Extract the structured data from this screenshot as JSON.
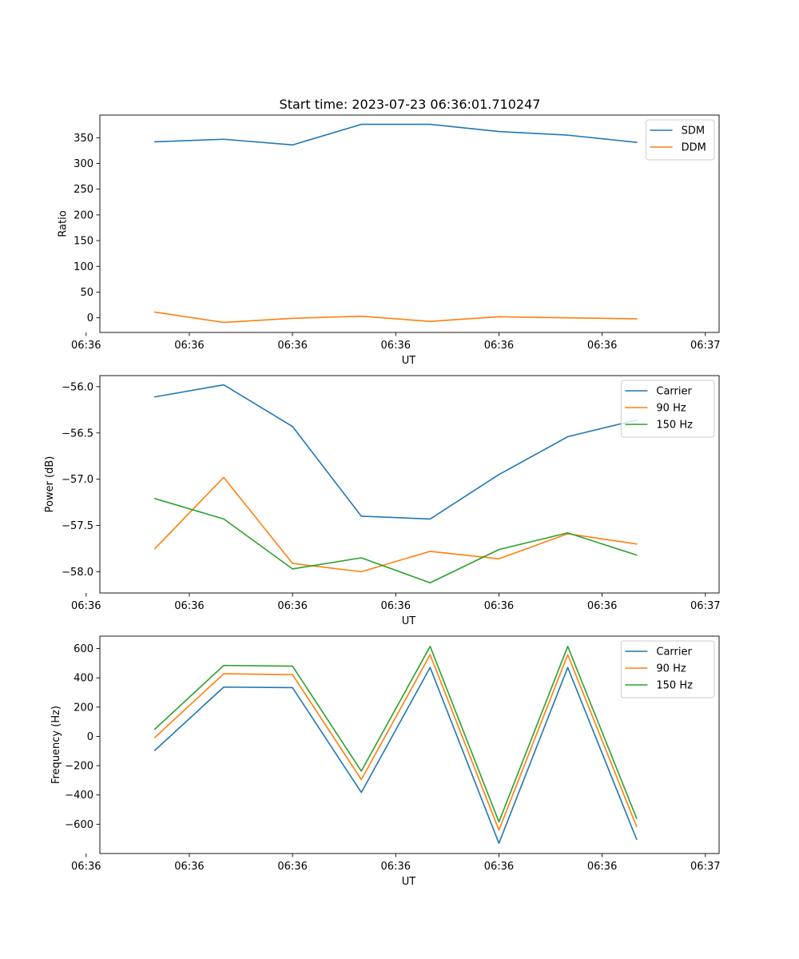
{
  "figure": {
    "title": "Start time: 2023-07-23 06:36:01.710247"
  },
  "colors": {
    "blue": "#1f77b4",
    "orange": "#ff7f0e",
    "green": "#2ca02c"
  },
  "chart_data": [
    {
      "type": "line",
      "title": "Start time: 2023-07-23 06:36:01.710247",
      "xlabel": "UT",
      "ylabel": "Ratio",
      "x": [
        1,
        2,
        3,
        4,
        5,
        6,
        7,
        8
      ],
      "xlim": [
        0.2,
        9.2
      ],
      "x_ticks": [
        0,
        1.5,
        3,
        4.5,
        6,
        7.5,
        9
      ],
      "x_tick_labels": [
        "06:36",
        "06:36",
        "06:36",
        "06:36",
        "06:36",
        "06:36",
        "06:37"
      ],
      "ylim": [
        -28.5,
        394
      ],
      "y_ticks": [
        0,
        50,
        100,
        150,
        200,
        250,
        300,
        350
      ],
      "y_tick_labels": [
        "0",
        "50",
        "100",
        "150",
        "200",
        "250",
        "300",
        "350"
      ],
      "legend_position": "top-right",
      "series": [
        {
          "name": "SDM",
          "color": "blue",
          "values": [
            342,
            347,
            336,
            376,
            376,
            362,
            355,
            341
          ]
        },
        {
          "name": "DDM",
          "color": "orange",
          "values": [
            11,
            -9,
            -1,
            3,
            -7,
            2,
            0,
            -2
          ]
        }
      ]
    },
    {
      "type": "line",
      "xlabel": "UT",
      "ylabel": "Power (dB)",
      "x": [
        1,
        2,
        3,
        4,
        5,
        6,
        7,
        8
      ],
      "xlim": [
        0.2,
        9.2
      ],
      "x_ticks": [
        0,
        1.5,
        3,
        4.5,
        6,
        7.5,
        9
      ],
      "x_tick_labels": [
        "06:36",
        "06:36",
        "06:36",
        "06:36",
        "06:36",
        "06:36",
        "06:37"
      ],
      "ylim": [
        -58.23,
        -55.88
      ],
      "y_ticks": [
        -58.0,
        -57.5,
        -57.0,
        -56.5,
        -56.0
      ],
      "y_tick_labels": [
        "−58.0",
        "−57.5",
        "−57.0",
        "−56.5",
        "−56.0"
      ],
      "legend_position": "top-right",
      "series": [
        {
          "name": "Carrier",
          "color": "blue",
          "values": [
            -56.11,
            -55.98,
            -56.43,
            -57.4,
            -57.43,
            -56.95,
            -56.54,
            -56.36
          ]
        },
        {
          "name": "90 Hz",
          "color": "orange",
          "values": [
            -57.75,
            -56.98,
            -57.91,
            -58.0,
            -57.78,
            -57.86,
            -57.59,
            -57.7
          ]
        },
        {
          "name": "150 Hz",
          "color": "green",
          "values": [
            -57.21,
            -57.43,
            -57.97,
            -57.85,
            -58.12,
            -57.76,
            -57.58,
            -57.82
          ]
        }
      ]
    },
    {
      "type": "line",
      "xlabel": "UT",
      "ylabel": "Frequency (Hz)",
      "x": [
        1,
        2,
        3,
        4,
        5,
        6,
        7,
        8
      ],
      "xlim": [
        0.2,
        9.2
      ],
      "x_ticks": [
        0,
        1.5,
        3,
        4.5,
        6,
        7.5,
        9
      ],
      "x_tick_labels": [
        "06:36",
        "06:36",
        "06:36",
        "06:36",
        "06:36",
        "06:36",
        "06:37"
      ],
      "ylim": [
        -800,
        685
      ],
      "y_ticks": [
        -600,
        -400,
        -200,
        0,
        200,
        400,
        600
      ],
      "y_tick_labels": [
        "−600",
        "−400",
        "−200",
        "0",
        "200",
        "400",
        "600"
      ],
      "legend_position": "top-right",
      "series": [
        {
          "name": "Carrier",
          "color": "blue",
          "values": [
            -95,
            337,
            333,
            -383,
            471,
            -730,
            471,
            -702
          ]
        },
        {
          "name": "90 Hz",
          "color": "orange",
          "values": [
            -7,
            428,
            422,
            -295,
            558,
            -640,
            558,
            -615
          ]
        },
        {
          "name": "150 Hz",
          "color": "green",
          "values": [
            50,
            485,
            480,
            -237,
            615,
            -584,
            615,
            -558
          ]
        }
      ]
    }
  ]
}
